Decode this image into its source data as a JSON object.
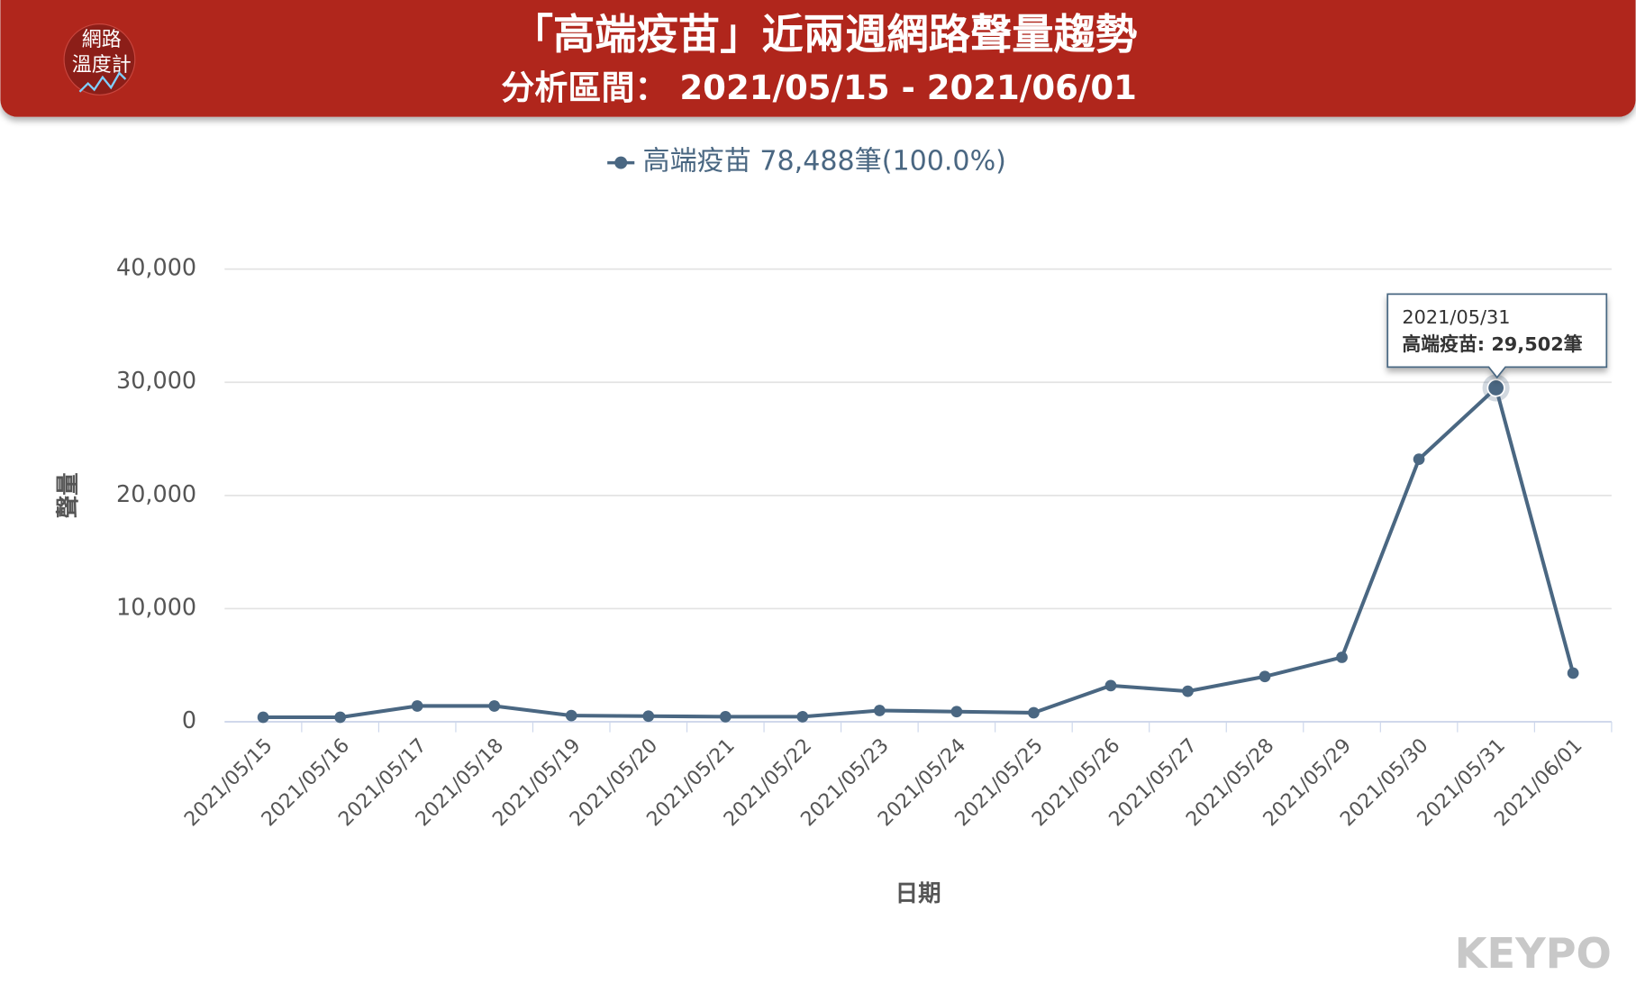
{
  "logo": [
    "網路",
    "溫度計"
  ],
  "chart_data": {
    "type": "line",
    "title": "「高端疫苗」近兩週網路聲量趨勢",
    "subtitle": "分析區間： 2021/05/15 - 2021/06/01",
    "x_label": "日期",
    "y_label": "聲量",
    "categories": [
      "2021/05/15",
      "2021/05/16",
      "2021/05/17",
      "2021/05/18",
      "2021/05/19",
      "2021/05/20",
      "2021/05/21",
      "2021/05/22",
      "2021/05/23",
      "2021/05/24",
      "2021/05/25",
      "2021/05/26",
      "2021/05/27",
      "2021/05/28",
      "2021/05/29",
      "2021/05/30",
      "2021/05/31",
      "2021/06/01"
    ],
    "series": [
      {
        "name": "高端疫苗",
        "legend_label": "78,488筆(100.0%)",
        "color": "#4a6782",
        "values": [
          400,
          400,
          1400,
          1400,
          550,
          500,
          450,
          450,
          1000,
          900,
          800,
          3200,
          2700,
          4000,
          5700,
          23200,
          29502,
          4300
        ]
      }
    ],
    "ylim": [
      0,
      40000
    ],
    "yticks": [
      0,
      {
        "value": 10000,
        "label": "10,000"
      },
      {
        "value": 20000,
        "label": "20,000"
      },
      {
        "value": 30000,
        "label": "30,000"
      },
      {
        "value": 40000,
        "label": "40,000"
      }
    ],
    "grid": true,
    "tooltip": {
      "title": "2021/05/31",
      "text": "高端疫苗: 29,502筆"
    },
    "watermark": "KEYPO"
  }
}
